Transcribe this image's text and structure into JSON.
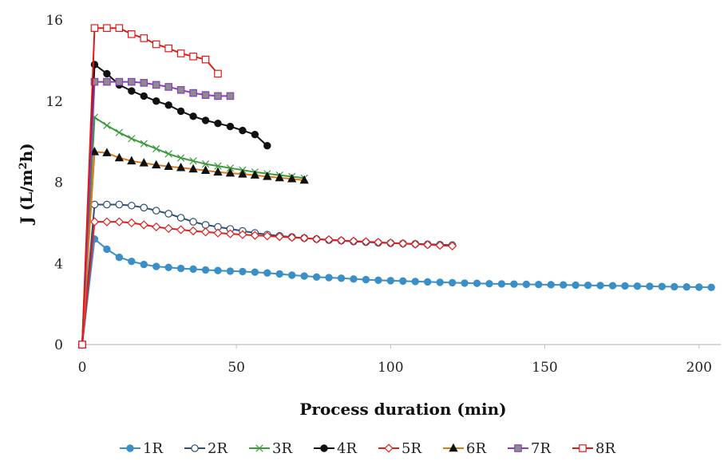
{
  "chart_data": {
    "type": "line",
    "title": "",
    "xlabel": "Process duration (min)",
    "ylabel": "J (L/m²h)",
    "ylabel_main": "J (L/m",
    "ylabel_sup": "2",
    "ylabel_end": "h)",
    "xlim": [
      0,
      205
    ],
    "ylim": [
      0,
      16
    ],
    "xticks": [
      0,
      50,
      100,
      150,
      200
    ],
    "yticks": [
      0,
      4,
      8,
      12,
      16
    ],
    "grid": false,
    "legend_position": "bottom",
    "series": [
      {
        "name": "1R",
        "color": "#3a8fc7",
        "marker": "circle-filled",
        "x": [
          0,
          4,
          8,
          12,
          16,
          20,
          24,
          28,
          32,
          36,
          40,
          44,
          48,
          52,
          56,
          60,
          64,
          68,
          72,
          76,
          80,
          84,
          88,
          92,
          96,
          100,
          104,
          108,
          112,
          116,
          120,
          124,
          128,
          132,
          136,
          140,
          144,
          148,
          152,
          156,
          160,
          164,
          168,
          172,
          176,
          180,
          184,
          188,
          192,
          196,
          200,
          204
        ],
        "y": [
          0,
          5.2,
          4.7,
          4.3,
          4.1,
          3.95,
          3.85,
          3.8,
          3.75,
          3.72,
          3.68,
          3.65,
          3.62,
          3.6,
          3.57,
          3.53,
          3.48,
          3.42,
          3.38,
          3.33,
          3.3,
          3.27,
          3.23,
          3.2,
          3.17,
          3.15,
          3.13,
          3.11,
          3.09,
          3.07,
          3.05,
          3.03,
          3.02,
          3.0,
          2.99,
          2.98,
          2.97,
          2.96,
          2.95,
          2.94,
          2.93,
          2.92,
          2.91,
          2.9,
          2.89,
          2.88,
          2.87,
          2.86,
          2.85,
          2.84,
          2.83,
          2.82
        ]
      },
      {
        "name": "2R",
        "color": "#2f4f74",
        "marker": "circle-open",
        "x": [
          0,
          4,
          8,
          12,
          16,
          20,
          24,
          28,
          32,
          36,
          40,
          44,
          48,
          52,
          56,
          60,
          64,
          68,
          72,
          76,
          80,
          84,
          88,
          92,
          96,
          100,
          104,
          108,
          112,
          116,
          120
        ],
        "y": [
          0,
          6.9,
          6.9,
          6.9,
          6.85,
          6.75,
          6.6,
          6.45,
          6.25,
          6.05,
          5.9,
          5.8,
          5.7,
          5.6,
          5.5,
          5.42,
          5.36,
          5.3,
          5.25,
          5.2,
          5.15,
          5.12,
          5.08,
          5.05,
          5.02,
          5.0,
          4.98,
          4.96,
          4.94,
          4.92,
          4.9
        ]
      },
      {
        "name": "3R",
        "color": "#3c9a3c",
        "marker": "x",
        "x": [
          0,
          4,
          8,
          12,
          16,
          20,
          24,
          28,
          32,
          36,
          40,
          44,
          48,
          52,
          56,
          60,
          64,
          68,
          72
        ],
        "y": [
          0,
          11.2,
          10.8,
          10.45,
          10.15,
          9.9,
          9.65,
          9.4,
          9.2,
          9.05,
          8.9,
          8.8,
          8.7,
          8.6,
          8.5,
          8.42,
          8.35,
          8.28,
          8.2
        ]
      },
      {
        "name": "4R",
        "color": "#111111",
        "marker": "circle-filled",
        "x": [
          0,
          4,
          8,
          12,
          16,
          20,
          24,
          28,
          32,
          36,
          40,
          44,
          48,
          52,
          56,
          60
        ],
        "y": [
          0,
          13.8,
          13.35,
          12.8,
          12.5,
          12.25,
          12.0,
          11.8,
          11.5,
          11.25,
          11.05,
          10.9,
          10.75,
          10.55,
          10.35,
          9.8
        ]
      },
      {
        "name": "5R",
        "color": "#e02020",
        "marker": "diamond-open",
        "x": [
          0,
          4,
          8,
          12,
          16,
          20,
          24,
          28,
          32,
          36,
          40,
          44,
          48,
          52,
          56,
          60,
          64,
          68,
          72,
          76,
          80,
          84,
          88,
          92,
          96,
          100,
          104,
          108,
          112,
          116,
          120
        ],
        "y": [
          0,
          6.05,
          6.05,
          6.05,
          6.0,
          5.9,
          5.8,
          5.72,
          5.66,
          5.6,
          5.55,
          5.5,
          5.46,
          5.42,
          5.38,
          5.35,
          5.32,
          5.28,
          5.25,
          5.2,
          5.17,
          5.13,
          5.1,
          5.07,
          5.04,
          5.01,
          4.98,
          4.95,
          4.92,
          4.89,
          4.86
        ]
      },
      {
        "name": "6R",
        "color": "#e07818",
        "marker": "triangle-filled",
        "x": [
          0,
          4,
          8,
          12,
          16,
          20,
          24,
          28,
          32,
          36,
          40,
          44,
          48,
          52,
          56,
          60,
          64,
          68,
          72
        ],
        "y": [
          0,
          9.5,
          9.45,
          9.2,
          9.05,
          8.95,
          8.85,
          8.78,
          8.72,
          8.65,
          8.58,
          8.5,
          8.45,
          8.4,
          8.35,
          8.28,
          8.22,
          8.17,
          8.1
        ]
      },
      {
        "name": "7R",
        "color": "#8a3fb8",
        "marker": "square-filled",
        "x": [
          0,
          4,
          8,
          12,
          16,
          20,
          24,
          28,
          32,
          36,
          40,
          44,
          48
        ],
        "y": [
          0,
          12.95,
          12.95,
          12.95,
          12.95,
          12.9,
          12.8,
          12.7,
          12.55,
          12.4,
          12.3,
          12.25,
          12.25
        ]
      },
      {
        "name": "8R",
        "color": "#e01818",
        "marker": "square-open",
        "x": [
          0,
          4,
          8,
          12,
          16,
          20,
          24,
          28,
          32,
          36,
          40,
          44
        ],
        "y": [
          0,
          15.6,
          15.6,
          15.6,
          15.3,
          15.1,
          14.8,
          14.6,
          14.35,
          14.2,
          14.05,
          13.35
        ]
      }
    ]
  }
}
